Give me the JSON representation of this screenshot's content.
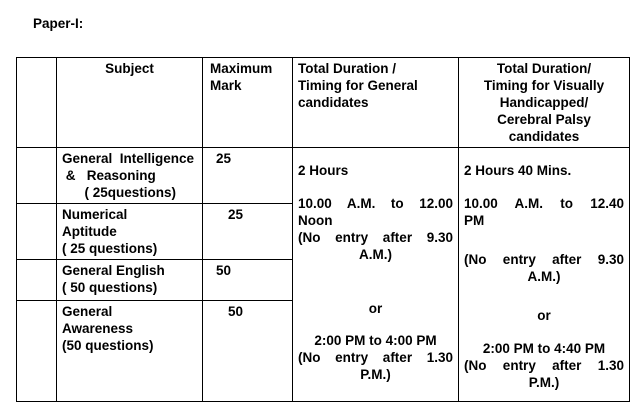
{
  "title": "Paper-I:",
  "table": {
    "header": {
      "subject": "Subject",
      "max_mark": "Maximum\nMark",
      "duration_general": "Total Duration /\nTiming for General\ncandidates",
      "duration_vh": "Total Duration/\nTiming for Visually\nHandicapped/\nCerebral Palsy\ncandidates"
    },
    "rows": [
      {
        "subject": "General  Intelligence\n &   Reasoning\n      ( 25questions)",
        "max_mark": "25"
      },
      {
        "subject": "Numerical\nAptitude\n( 25 questions)",
        "max_mark": "25"
      },
      {
        "subject": "General English\n( 50 questions)",
        "max_mark": "50"
      },
      {
        "subject": "General\nAwareness\n(50 questions)",
        "max_mark": "50"
      }
    ],
    "duration_general_lines": [
      "2 Hours",
      "10.00 A.M. to 12.00",
      "Noon",
      "(No entry after 9.30",
      "A.M.)",
      "or",
      "2:00 PM to 4:00 PM",
      "(No entry after 1.30",
      "P.M.)"
    ],
    "duration_vh_lines": [
      "2 Hours 40 Mins.",
      "10.00 A.M. to 12.40",
      "PM",
      "(No entry after 9.30",
      "A.M.)",
      "or",
      "2:00 PM to 4:40 PM",
      "(No entry after 1.30",
      "P.M.)"
    ]
  }
}
